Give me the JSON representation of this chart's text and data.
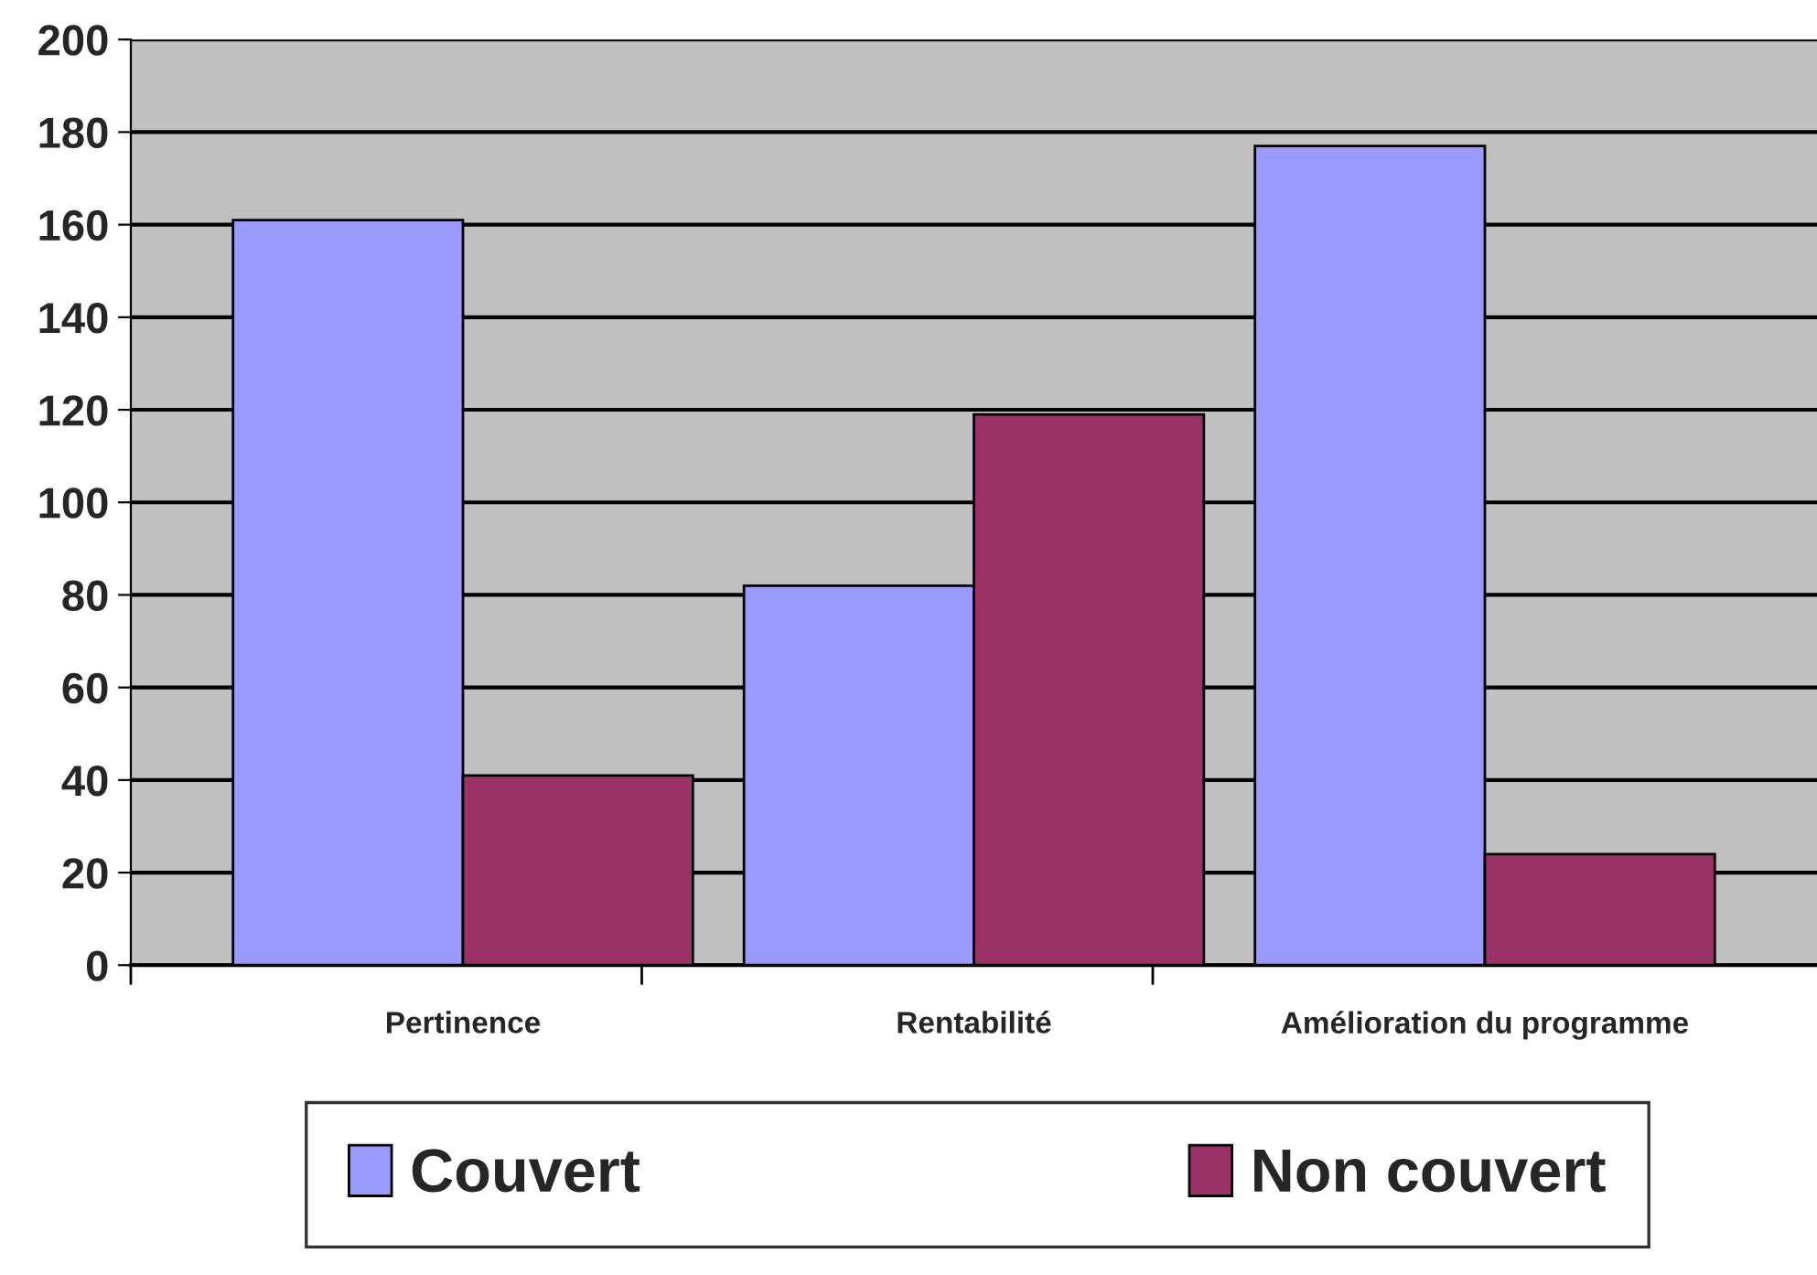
{
  "chart_data": {
    "type": "bar",
    "categories": [
      "Pertinence",
      "Rentabilité",
      "Amélioration du programme"
    ],
    "series": [
      {
        "name": "Couvert",
        "color": "#9999ff",
        "values": [
          161,
          82,
          177
        ]
      },
      {
        "name": "Non couvert",
        "color": "#993366",
        "values": [
          41,
          119,
          24
        ]
      }
    ],
    "ylim": [
      0,
      200
    ],
    "yticks": [
      0,
      20,
      40,
      60,
      80,
      100,
      120,
      140,
      160,
      180,
      200
    ],
    "grid": "y",
    "legend": "bottom"
  }
}
